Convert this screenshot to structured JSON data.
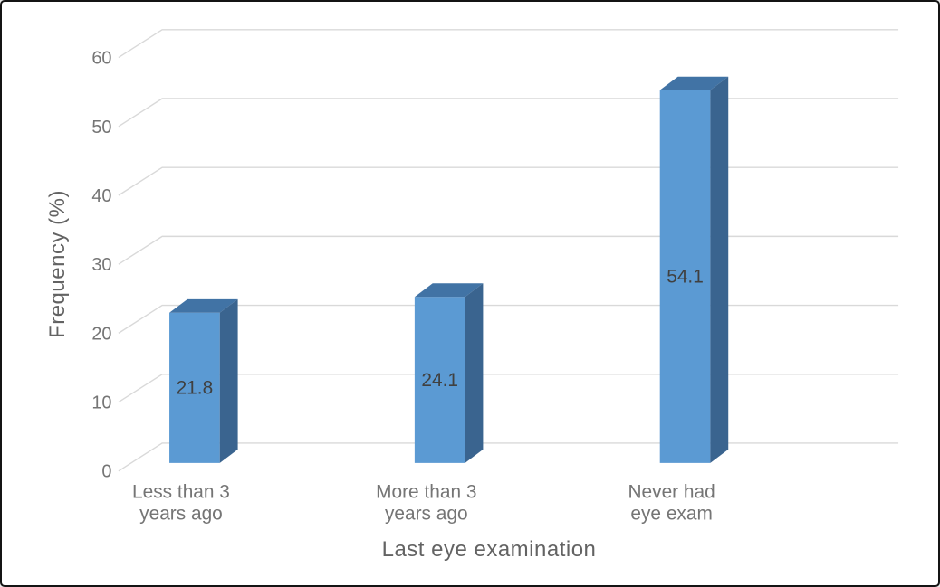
{
  "chart_data": {
    "type": "bar",
    "style_3d": true,
    "title": "",
    "xlabel": "Last eye examination",
    "ylabel": "Frequency (%)",
    "categories": [
      "Less than 3 years ago",
      "More than 3 years ago",
      "Never had eye exam"
    ],
    "category_lines": [
      [
        "Less than 3",
        "years ago"
      ],
      [
        "More than 3",
        "years ago"
      ],
      [
        "Never had",
        "eye exam"
      ]
    ],
    "values": [
      21.8,
      24.1,
      54.1
    ],
    "data_labels": [
      "21.8",
      "24.1",
      "54.1"
    ],
    "yticks": [
      0,
      10,
      20,
      30,
      40,
      50,
      60
    ],
    "ylim": [
      0,
      60
    ],
    "grid": true,
    "legend": "none",
    "colors": {
      "bar_front": "#5B9AD3",
      "bar_top": "#4173A5",
      "bar_side": "#3A648F",
      "gridline": "#D9D9D9",
      "tick_text": "#757575",
      "category_text": "#757575",
      "axis_title_text": "#636363",
      "data_label_text": "#404040",
      "background": "#FFFFFF",
      "border": "#141414"
    }
  }
}
